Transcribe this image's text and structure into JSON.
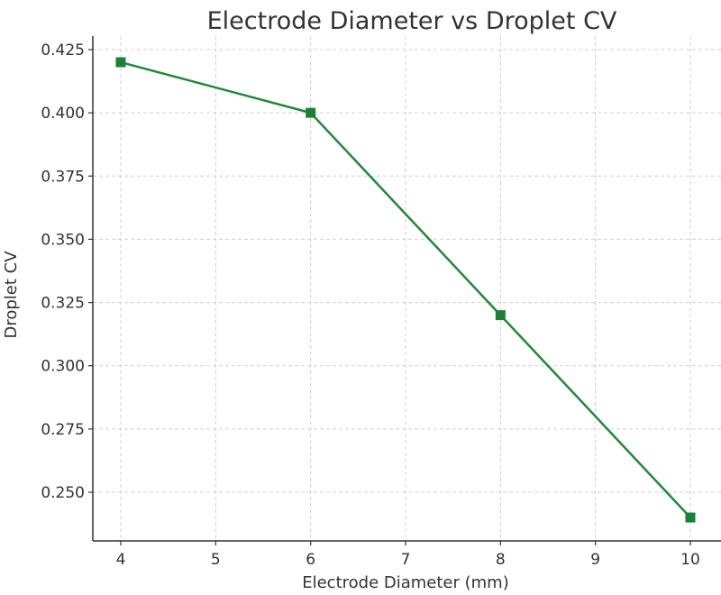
{
  "chart_data": {
    "type": "line",
    "title": "Electrode Diameter vs Droplet CV",
    "xlabel": "Electrode Diameter (mm)",
    "ylabel": "Droplet CV",
    "x": [
      4,
      6,
      8,
      10
    ],
    "series": [
      {
        "name": "Droplet CV",
        "values": [
          0.42,
          0.4,
          0.32,
          0.24
        ],
        "color": "#218838",
        "marker": "square"
      }
    ],
    "xticks": [
      4,
      5,
      6,
      7,
      8,
      9,
      10
    ],
    "yticks": [
      0.25,
      0.275,
      0.3,
      0.325,
      0.35,
      0.375,
      0.4,
      0.425
    ],
    "ytick_labels": [
      "0.250",
      "0.275",
      "0.300",
      "0.325",
      "0.350",
      "0.375",
      "0.400",
      "0.425"
    ],
    "xlim": [
      3.7,
      11.1
    ],
    "ylim": [
      0.2305,
      0.4305
    ],
    "grid": true,
    "legend": null
  }
}
